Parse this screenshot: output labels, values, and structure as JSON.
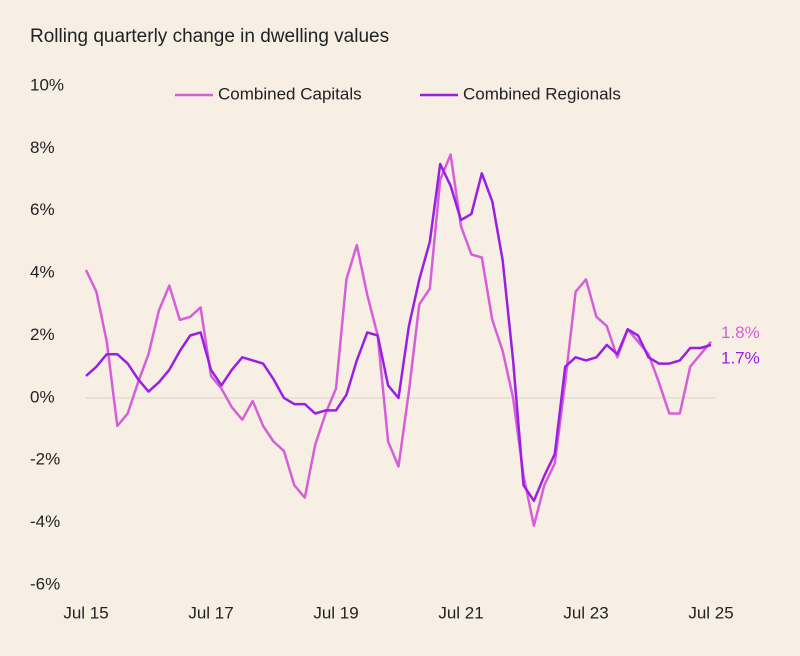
{
  "chart_data": {
    "type": "line",
    "title": "Rolling quarterly change in dwelling values",
    "categories": [
      "Jul 15",
      null,
      null,
      null,
      null,
      null,
      null,
      null,
      null,
      null,
      null,
      null,
      "Jul 17",
      null,
      null,
      null,
      null,
      null,
      null,
      null,
      null,
      null,
      null,
      null,
      "Jul 19",
      null,
      null,
      null,
      null,
      null,
      null,
      null,
      null,
      null,
      null,
      null,
      "Jul 21",
      null,
      null,
      null,
      null,
      null,
      null,
      null,
      null,
      null,
      null,
      null,
      "Jul 23",
      null,
      null,
      null,
      null,
      null,
      null,
      null,
      null,
      null,
      null,
      null,
      "Jul 25"
    ],
    "series": [
      {
        "name": "Combined Capitals",
        "color": "#d65fd8",
        "values": [
          4.1,
          3.4,
          1.8,
          -0.9,
          -0.5,
          0.5,
          1.4,
          2.8,
          3.6,
          2.5,
          2.6,
          2.9,
          0.7,
          0.3,
          -0.3,
          -0.7,
          -0.1,
          -0.9,
          -1.4,
          -1.7,
          -2.8,
          -3.2,
          -1.5,
          -0.5,
          0.3,
          3.8,
          4.9,
          3.3,
          2.0,
          -1.4,
          -2.2,
          0.2,
          3.0,
          3.5,
          7.0,
          7.8,
          5.5,
          4.6,
          4.5,
          2.5,
          1.5,
          0.0,
          -2.5,
          -4.1,
          -2.8,
          -2.1,
          0.5,
          3.4,
          3.8,
          2.6,
          2.3,
          1.3,
          2.2,
          1.8,
          1.4,
          0.5,
          -0.5,
          -0.5,
          1.0,
          1.4,
          1.8
        ],
        "value_labels": [
          null,
          null,
          null,
          null,
          null,
          null,
          null,
          null,
          null,
          null,
          null,
          null,
          null,
          null,
          null,
          null,
          null,
          null,
          null,
          null,
          null,
          null,
          null,
          null,
          null,
          null,
          null,
          null,
          null,
          null,
          null,
          null,
          null,
          null,
          null,
          null,
          null,
          null,
          null,
          null,
          null,
          null,
          null,
          null,
          null,
          null,
          null,
          null,
          null,
          null,
          null,
          null,
          null,
          null,
          null,
          null,
          null,
          null,
          null,
          null,
          "1.8%"
        ]
      },
      {
        "name": "Combined Regionals",
        "color": "#9b1fe0",
        "values": [
          0.7,
          1.0,
          1.4,
          1.4,
          1.1,
          0.6,
          0.2,
          0.5,
          0.9,
          1.5,
          2.0,
          2.1,
          0.9,
          0.4,
          0.9,
          1.3,
          1.2,
          1.1,
          0.6,
          0.0,
          -0.2,
          -0.2,
          -0.5,
          -0.4,
          -0.4,
          0.1,
          1.2,
          2.1,
          2.0,
          0.4,
          0.0,
          2.3,
          3.8,
          5.0,
          7.5,
          6.8,
          5.7,
          5.9,
          7.2,
          6.3,
          4.4,
          1.2,
          -2.8,
          -3.3,
          -2.5,
          -1.8,
          1.0,
          1.3,
          1.2,
          1.3,
          1.7,
          1.4,
          2.2,
          2.0,
          1.3,
          1.1,
          1.1,
          1.2,
          1.6,
          1.6,
          1.7
        ],
        "value_labels": [
          null,
          null,
          null,
          null,
          null,
          null,
          null,
          null,
          null,
          null,
          null,
          null,
          null,
          null,
          null,
          null,
          null,
          null,
          null,
          null,
          null,
          null,
          null,
          null,
          null,
          null,
          null,
          null,
          null,
          null,
          null,
          null,
          null,
          null,
          null,
          null,
          null,
          null,
          null,
          null,
          null,
          null,
          null,
          null,
          null,
          null,
          null,
          null,
          null,
          null,
          null,
          null,
          null,
          null,
          null,
          null,
          null,
          null,
          null,
          null,
          "1.7%"
        ]
      }
    ],
    "ylim": [
      -6,
      10
    ],
    "yticks": [
      {
        "value": -6,
        "label": "-6%"
      },
      {
        "value": -4,
        "label": "-4%"
      },
      {
        "value": -2,
        "label": "-2%"
      },
      {
        "value": 0,
        "label": "0%"
      },
      {
        "value": 2,
        "label": "2%"
      },
      {
        "value": 4,
        "label": "4%"
      },
      {
        "value": 6,
        "label": "6%"
      },
      {
        "value": 8,
        "label": "8%"
      },
      {
        "value": 10,
        "label": "10%"
      }
    ],
    "grid": false,
    "legend": "top"
  }
}
